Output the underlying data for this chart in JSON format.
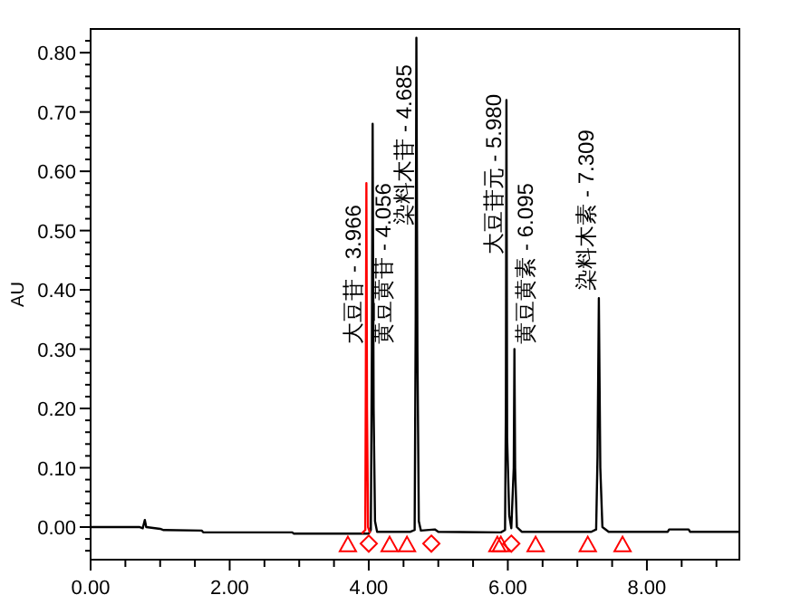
{
  "chart_data": {
    "type": "line",
    "ylabel": "AU",
    "xlim": [
      0,
      9.33
    ],
    "ylim": [
      -0.055,
      0.84
    ],
    "xticks": [
      {
        "value": 0,
        "label": "0.00"
      },
      {
        "value": 0.5,
        "label": null
      },
      {
        "value": 1,
        "label": null
      },
      {
        "value": 1.5,
        "label": null
      },
      {
        "value": 2,
        "label": "2.00"
      },
      {
        "value": 2.5,
        "label": null
      },
      {
        "value": 3,
        "label": null
      },
      {
        "value": 3.5,
        "label": null
      },
      {
        "value": 4,
        "label": "4.00"
      },
      {
        "value": 4.5,
        "label": null
      },
      {
        "value": 5,
        "label": null
      },
      {
        "value": 5.5,
        "label": null
      },
      {
        "value": 6,
        "label": "6.00"
      },
      {
        "value": 6.5,
        "label": null
      },
      {
        "value": 7,
        "label": null
      },
      {
        "value": 7.5,
        "label": null
      },
      {
        "value": 8,
        "label": "8.00"
      },
      {
        "value": 8.5,
        "label": null
      },
      {
        "value": 9,
        "label": null
      }
    ],
    "yticks": [
      {
        "value": -0.04,
        "label": null
      },
      {
        "value": -0.02,
        "label": null
      },
      {
        "value": 0,
        "label": "0.00"
      },
      {
        "value": 0.02,
        "label": null
      },
      {
        "value": 0.04,
        "label": null
      },
      {
        "value": 0.06,
        "label": null
      },
      {
        "value": 0.08,
        "label": null
      },
      {
        "value": 0.1,
        "label": "0.10"
      },
      {
        "value": 0.12,
        "label": null
      },
      {
        "value": 0.14,
        "label": null
      },
      {
        "value": 0.16,
        "label": null
      },
      {
        "value": 0.18,
        "label": null
      },
      {
        "value": 0.2,
        "label": "0.20"
      },
      {
        "value": 0.22,
        "label": null
      },
      {
        "value": 0.24,
        "label": null
      },
      {
        "value": 0.26,
        "label": null
      },
      {
        "value": 0.28,
        "label": null
      },
      {
        "value": 0.3,
        "label": "0.30"
      },
      {
        "value": 0.32,
        "label": null
      },
      {
        "value": 0.34,
        "label": null
      },
      {
        "value": 0.36,
        "label": null
      },
      {
        "value": 0.38,
        "label": null
      },
      {
        "value": 0.4,
        "label": "0.40"
      },
      {
        "value": 0.42,
        "label": null
      },
      {
        "value": 0.44,
        "label": null
      },
      {
        "value": 0.46,
        "label": null
      },
      {
        "value": 0.48,
        "label": null
      },
      {
        "value": 0.5,
        "label": "0.50"
      },
      {
        "value": 0.52,
        "label": null
      },
      {
        "value": 0.54,
        "label": null
      },
      {
        "value": 0.56,
        "label": null
      },
      {
        "value": 0.58,
        "label": null
      },
      {
        "value": 0.6,
        "label": "0.60"
      },
      {
        "value": 0.62,
        "label": null
      },
      {
        "value": 0.64,
        "label": null
      },
      {
        "value": 0.66,
        "label": null
      },
      {
        "value": 0.68,
        "label": null
      },
      {
        "value": 0.7,
        "label": "0.70"
      },
      {
        "value": 0.72,
        "label": null
      },
      {
        "value": 0.74,
        "label": null
      },
      {
        "value": 0.76,
        "label": null
      },
      {
        "value": 0.78,
        "label": null
      },
      {
        "value": 0.8,
        "label": "0.80"
      },
      {
        "value": 0.82,
        "label": null
      }
    ],
    "series": [
      {
        "type": "line",
        "color": "#000000",
        "x": [
          0,
          0.7,
          0.75,
          0.78,
          0.8,
          1.0,
          1.05,
          1.6,
          1.62,
          2.9,
          2.92,
          3.9,
          4.0,
          4.03,
          4.045,
          4.056,
          4.07,
          4.09,
          4.12,
          4.6,
          4.66,
          4.675,
          4.685,
          4.7,
          4.72,
          4.75,
          4.95,
          5.0,
          5.9,
          5.96,
          5.972,
          5.98,
          5.99,
          6.02,
          6.05,
          6.085,
          6.095,
          6.105,
          6.13,
          6.2,
          7.2,
          7.27,
          7.29,
          7.309,
          7.33,
          7.36,
          7.45,
          8.3,
          8.32,
          8.6,
          8.62,
          9.33
        ],
        "values": [
          0,
          0,
          -0.002,
          0.012,
          0,
          -0.003,
          -0.005,
          -0.006,
          -0.009,
          -0.009,
          -0.011,
          -0.011,
          -0.011,
          -0.005,
          0.3,
          0.68,
          0.2,
          0.01,
          -0.008,
          -0.008,
          -0.005,
          0.35,
          0.825,
          0.3,
          0.01,
          -0.006,
          -0.004,
          -0.008,
          -0.009,
          -0.005,
          0.2,
          0.72,
          0.15,
          0.02,
          -0.002,
          0.1,
          0.3,
          0.1,
          0,
          -0.008,
          -0.008,
          -0.004,
          0.12,
          0.386,
          0.1,
          0,
          -0.008,
          -0.008,
          -0.004,
          -0.004,
          -0.008,
          -0.008
        ]
      },
      {
        "type": "line",
        "color": "#ff0000",
        "x": [
          3.9,
          3.95,
          3.958,
          3.966,
          3.975,
          3.99,
          4.02
        ],
        "values": [
          -0.011,
          -0.005,
          0.25,
          0.58,
          0.2,
          0,
          -0.01
        ]
      },
      {
        "type": "scatter",
        "marker": "triangle",
        "color": "#ff0000",
        "x": [
          3.7,
          4.3,
          4.55,
          5.85,
          5.9,
          6.4,
          7.15,
          7.65
        ],
        "values": [
          -0.03,
          -0.03,
          -0.03,
          -0.03,
          -0.03,
          -0.03,
          -0.03,
          -0.03
        ]
      },
      {
        "type": "scatter",
        "marker": "diamond",
        "color": "#ff0000",
        "x": [
          4.0,
          4.9,
          6.05
        ],
        "values": [
          -0.028,
          -0.028,
          -0.028
        ]
      }
    ],
    "annotations": [
      {
        "text": "大豆苷 - 3.966",
        "x": 3.966,
        "y": 0.3
      },
      {
        "text": "黄豆黄苷 - 4.056",
        "x": 4.056,
        "y": 0.3
      },
      {
        "text": "染料木苷 - 4.685",
        "x": 4.685,
        "y": 0.5
      },
      {
        "text": "大豆苷元 - 5.980",
        "x": 5.98,
        "y": 0.45
      },
      {
        "text": "黄豆黄素 - 6.095",
        "x": 6.095,
        "y": 0.3
      },
      {
        "text": "染料木素 - 7.309",
        "x": 7.309,
        "y": 0.39
      }
    ]
  }
}
